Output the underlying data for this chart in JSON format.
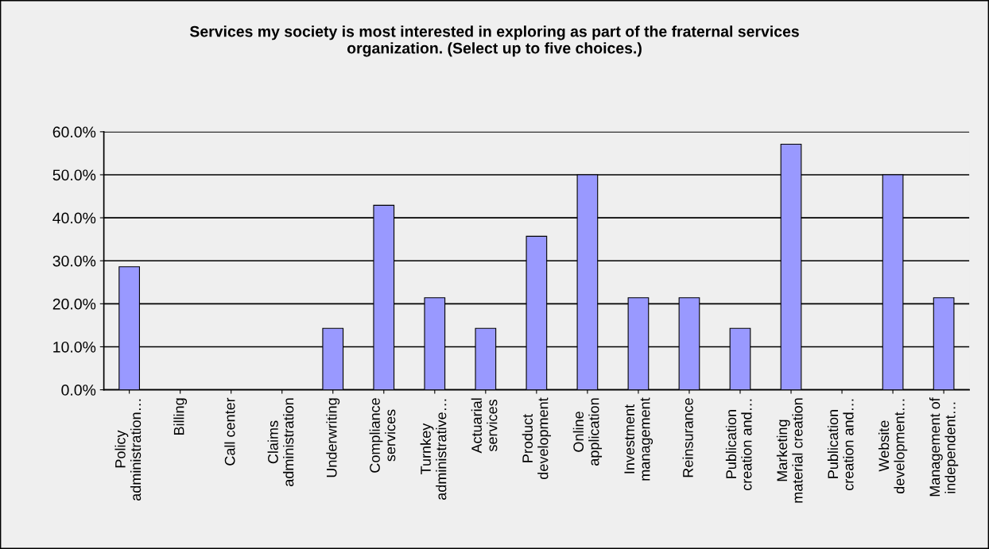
{
  "chart_data": {
    "type": "bar",
    "title": "Services my society is most interested in exploring as part of the fraternal services\norganization. (Select up to five choices.)",
    "categories": [
      "Policy\nadministration…",
      "Billing",
      "Call center",
      "Claims\nadministration",
      "Underwriting",
      "Compliance\nservices",
      "Turnkey\nadministrative…",
      "Actuarial\nservices",
      "Product\ndevelopment",
      "Online\napplication",
      "Investment\nmanagement",
      "Reinsurance",
      "Publication\ncreation and…",
      "Marketing\nmaterial creation",
      "Publication\ncreation and…",
      "Website\ndevelopment…",
      "Management of\nindependent…"
    ],
    "values": [
      28.6,
      0,
      0,
      0,
      14.3,
      42.9,
      21.4,
      14.3,
      35.7,
      50.0,
      21.4,
      21.4,
      14.3,
      57.1,
      0,
      50.0,
      21.4
    ],
    "color": "#9999ff",
    "ylim": [
      0,
      60
    ],
    "yticks": [
      {
        "value": 0,
        "label": "0.0%"
      },
      {
        "value": 10,
        "label": "10.0%"
      },
      {
        "value": 20,
        "label": "20.0%"
      },
      {
        "value": 30,
        "label": "30.0%"
      },
      {
        "value": 40,
        "label": "40.0%"
      },
      {
        "value": 50,
        "label": "50.0%"
      },
      {
        "value": 60,
        "label": "60.0%"
      }
    ],
    "grid": "y"
  }
}
